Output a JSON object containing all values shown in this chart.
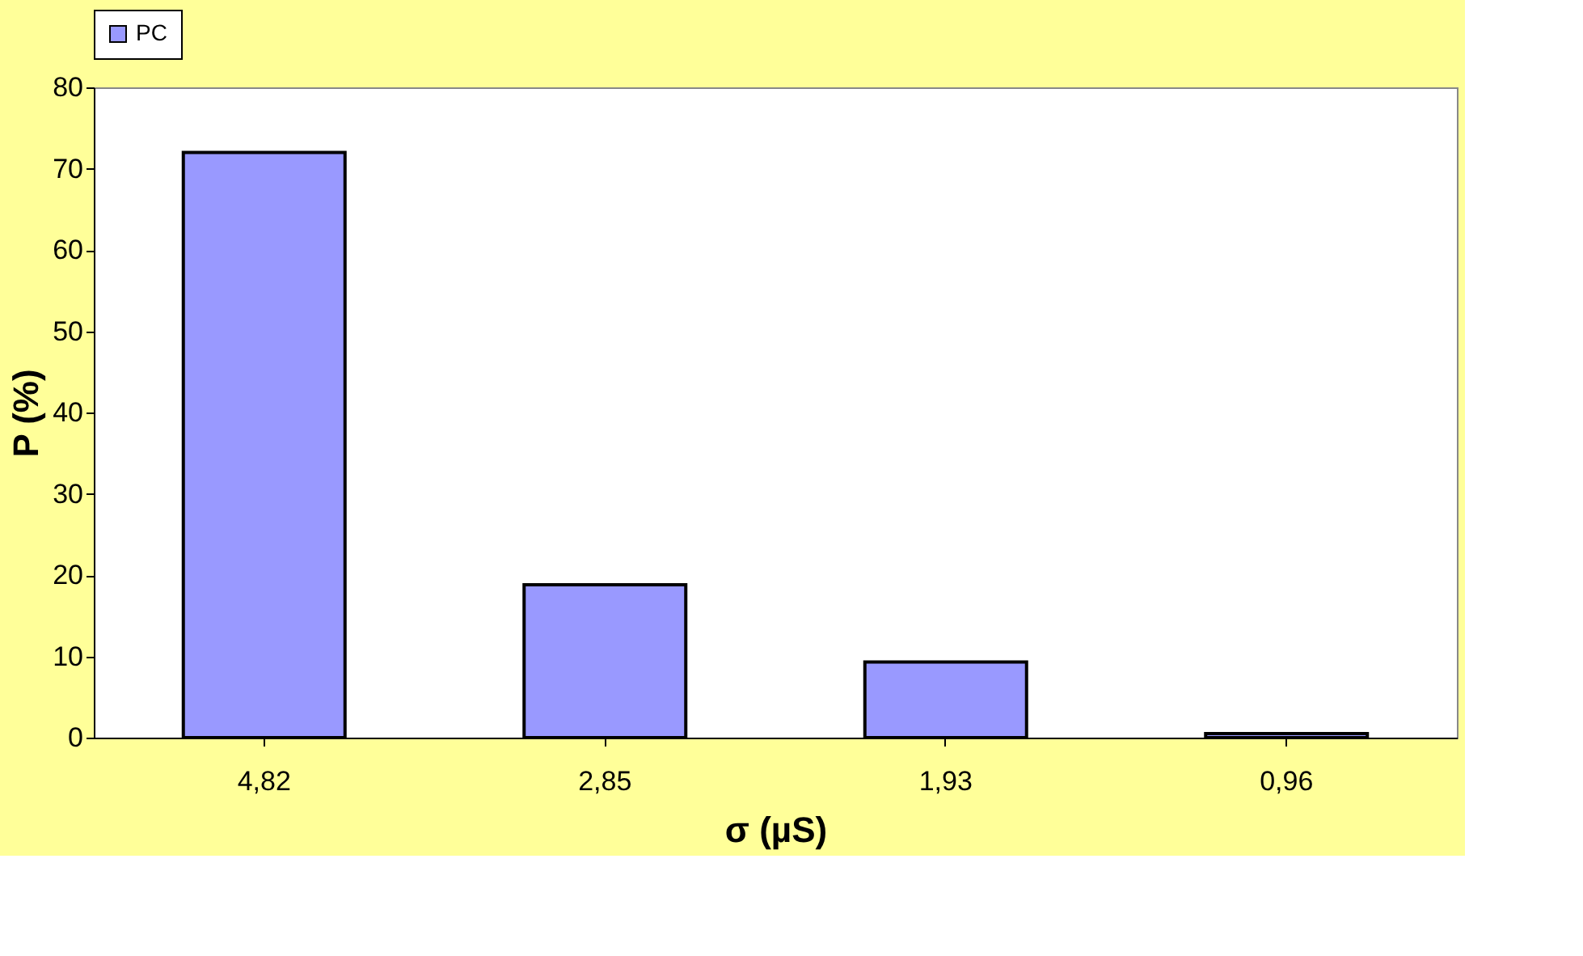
{
  "chart_data": {
    "type": "bar",
    "xlabel": "σ (µS)",
    "ylabel": "P (%)",
    "categories": [
      "4,82",
      "2,85",
      "1,93",
      "0,96"
    ],
    "series": [
      {
        "name": "PC",
        "color": "#9999ff",
        "values": [
          72,
          18.8,
          9.3,
          0.5
        ]
      }
    ],
    "ylim": [
      0,
      80
    ],
    "yticks": [
      0,
      10,
      20,
      30,
      40,
      50,
      60,
      70,
      80
    ],
    "grid": false,
    "legend": "top"
  }
}
